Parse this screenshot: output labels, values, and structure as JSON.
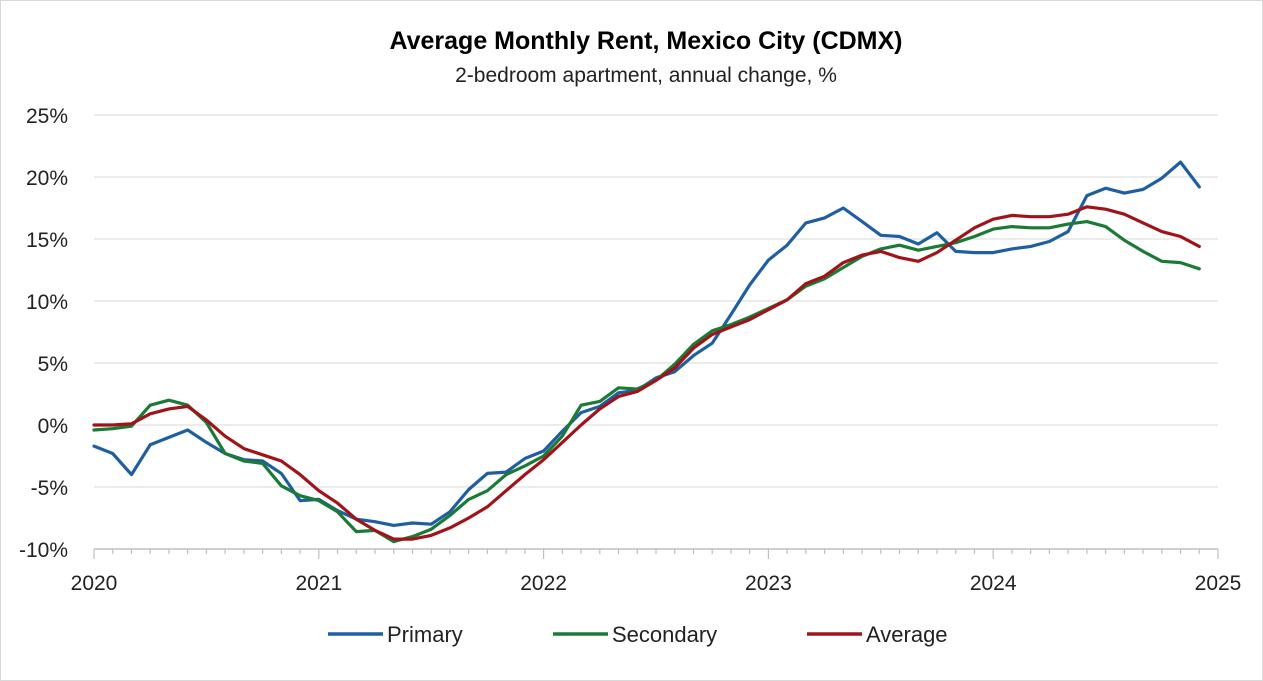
{
  "chart_data": {
    "type": "line",
    "title": "Average Monthly Rent, Mexico City (CDMX)",
    "subtitle": "2-bedroom apartment, annual change, %",
    "xlabel": "",
    "ylabel": "",
    "x_ticks": [
      "2020",
      "2021",
      "2022",
      "2023",
      "2024",
      "2025"
    ],
    "y_ticks": [
      "25%",
      "20%",
      "15%",
      "10%",
      "5%",
      "0%",
      "-5%",
      "-10%"
    ],
    "ylim": [
      -10,
      25
    ],
    "xlim": [
      "2020-01",
      "2025-01"
    ],
    "grid": true,
    "legend_position": "bottom",
    "x": [
      "2020-01",
      "2020-02",
      "2020-03",
      "2020-04",
      "2020-05",
      "2020-06",
      "2020-07",
      "2020-08",
      "2020-09",
      "2020-10",
      "2020-11",
      "2020-12",
      "2021-01",
      "2021-02",
      "2021-03",
      "2021-04",
      "2021-05",
      "2021-06",
      "2021-07",
      "2021-08",
      "2021-09",
      "2021-10",
      "2021-11",
      "2021-12",
      "2022-01",
      "2022-02",
      "2022-03",
      "2022-04",
      "2022-05",
      "2022-06",
      "2022-07",
      "2022-08",
      "2022-09",
      "2022-10",
      "2022-11",
      "2022-12",
      "2023-01",
      "2023-02",
      "2023-03",
      "2023-04",
      "2023-05",
      "2023-06",
      "2023-07",
      "2023-08",
      "2023-09",
      "2023-10",
      "2023-11",
      "2023-12",
      "2024-01",
      "2024-02",
      "2024-03",
      "2024-04",
      "2024-05",
      "2024-06",
      "2024-07",
      "2024-08",
      "2024-09",
      "2024-10",
      "2024-11",
      "2024-12"
    ],
    "series": [
      {
        "name": "Primary",
        "color": "#1f5fa0",
        "values": [
          -1.7,
          -2.3,
          -4.0,
          -1.6,
          -1.0,
          -0.4,
          -1.4,
          -2.3,
          -2.8,
          -2.9,
          -3.9,
          -6.1,
          -6.0,
          -6.9,
          -7.6,
          -7.8,
          -8.1,
          -7.9,
          -8.0,
          -7.0,
          -5.2,
          -3.9,
          -3.8,
          -2.7,
          -2.1,
          -0.5,
          1.0,
          1.5,
          2.6,
          2.8,
          3.8,
          4.3,
          5.6,
          6.6,
          8.9,
          11.3,
          13.3,
          14.5,
          16.3,
          16.7,
          17.5,
          16.4,
          15.3,
          15.2,
          14.6,
          15.5,
          14.0,
          13.9,
          13.9,
          14.2,
          14.4,
          14.8,
          15.6,
          18.5,
          19.1,
          18.7,
          19.0,
          19.9,
          21.2,
          19.2
        ]
      },
      {
        "name": "Secondary",
        "color": "#1a7a36",
        "values": [
          -0.4,
          -0.3,
          -0.1,
          1.6,
          2.0,
          1.6,
          0.2,
          -2.3,
          -2.9,
          -3.1,
          -4.9,
          -5.7,
          -6.1,
          -7.0,
          -8.6,
          -8.5,
          -9.4,
          -9.0,
          -8.4,
          -7.3,
          -6.0,
          -5.3,
          -4.0,
          -3.3,
          -2.5,
          -0.9,
          1.6,
          1.9,
          3.0,
          2.9,
          3.6,
          4.9,
          6.5,
          7.6,
          8.1,
          8.7,
          9.4,
          10.1,
          11.2,
          11.8,
          12.7,
          13.6,
          14.2,
          14.5,
          14.1,
          14.4,
          14.7,
          15.2,
          15.8,
          16.0,
          15.9,
          15.9,
          16.2,
          16.4,
          16.0,
          14.9,
          14.0,
          13.2,
          13.1,
          12.6
        ]
      },
      {
        "name": "Average",
        "color": "#a1131a",
        "values": [
          0.0,
          0.0,
          0.1,
          0.9,
          1.3,
          1.5,
          0.4,
          -0.9,
          -1.9,
          -2.4,
          -2.9,
          -4.0,
          -5.3,
          -6.3,
          -7.6,
          -8.5,
          -9.2,
          -9.2,
          -8.9,
          -8.3,
          -7.5,
          -6.6,
          -5.3,
          -4.0,
          -2.8,
          -1.4,
          0.0,
          1.3,
          2.3,
          2.7,
          3.6,
          4.6,
          6.2,
          7.3,
          7.9,
          8.5,
          9.3,
          10.1,
          11.4,
          12.0,
          13.1,
          13.7,
          14.0,
          13.5,
          13.2,
          13.9,
          14.9,
          15.9,
          16.6,
          16.9,
          16.8,
          16.8,
          17.0,
          17.6,
          17.4,
          17.0,
          16.3,
          15.6,
          15.2,
          14.4
        ]
      }
    ]
  }
}
